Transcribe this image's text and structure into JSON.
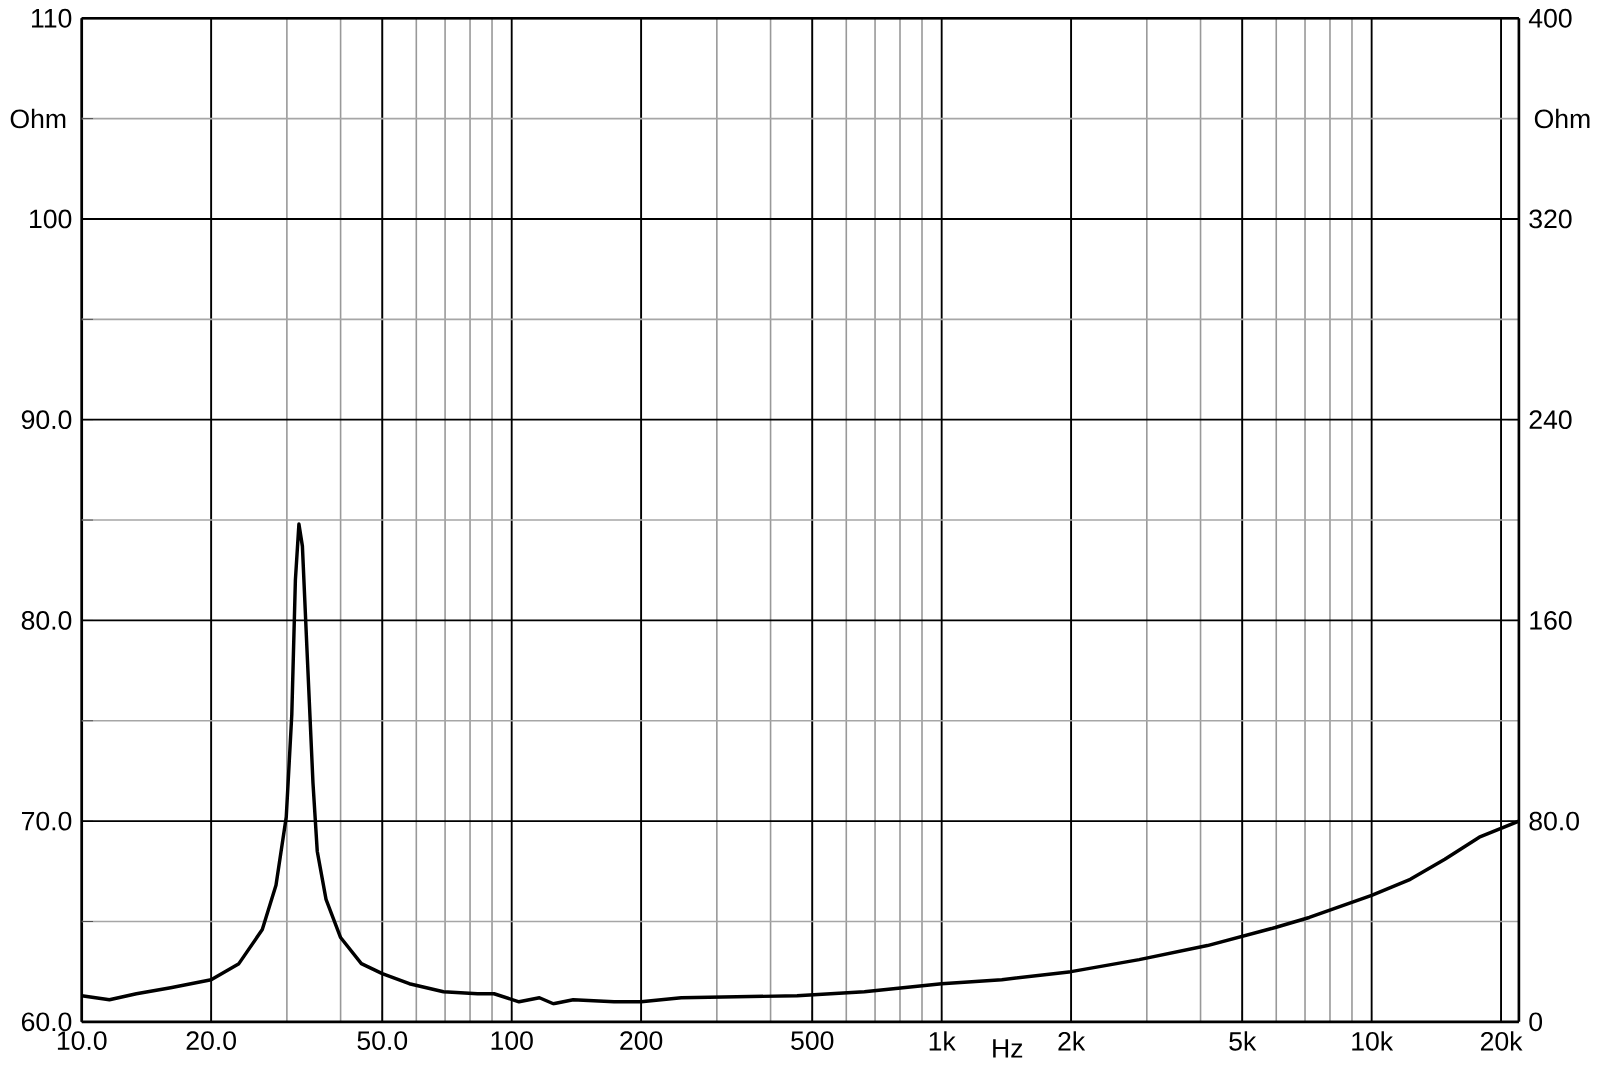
{
  "chart_data": {
    "type": "line",
    "xlabel": "Hz",
    "ylabel": "Ohm",
    "y2label": "Ohm",
    "x": [
      10,
      11.6,
      13.4,
      16.1,
      20,
      23.2,
      26.3,
      28.3,
      29.9,
      30.8,
      31.4,
      32.0,
      32.6,
      33.4,
      34.5,
      35.3,
      37.0,
      40,
      44.7,
      50,
      57.8,
      69.4,
      83.3,
      91,
      104,
      116,
      125,
      139,
      173,
      200,
      248,
      461,
      661,
      1000,
      1380,
      2000,
      2880,
      4150,
      5970,
      7160,
      10000,
      12300,
      14800,
      17800,
      22000
    ],
    "series": [
      {
        "color": "#000000",
        "values": [
          61.3,
          61.1,
          61.4,
          61.7,
          62.1,
          62.9,
          64.6,
          66.8,
          70.2,
          75.3,
          82.0,
          84.8,
          83.7,
          78.6,
          71.9,
          68.5,
          66.1,
          64.2,
          62.9,
          62.4,
          61.9,
          61.5,
          61.4,
          61.4,
          61.0,
          61.2,
          60.9,
          61.1,
          61.0,
          61.0,
          61.2,
          61.3,
          61.5,
          61.9,
          62.1,
          62.5,
          63.1,
          63.8,
          64.7,
          65.2,
          66.3,
          67.1,
          68.1,
          69.2,
          70.0
        ]
      }
    ],
    "log": "x",
    "grid": true,
    "xlim": [
      10,
      22000
    ],
    "xticks": [
      {
        "value": 10,
        "label": "10.0"
      },
      {
        "value": 20,
        "label": "20.0"
      },
      {
        "value": 50,
        "label": "50.0"
      },
      100,
      200,
      500,
      {
        "value": 1000,
        "label": "1k"
      },
      {
        "value": 2000,
        "label": "2k"
      },
      {
        "value": 5000,
        "label": "5k"
      },
      {
        "value": 10000,
        "label": "10k"
      },
      {
        "value": 20000,
        "label": "20k"
      }
    ],
    "ylim": [
      60,
      110
    ],
    "yticks": [
      {
        "value": 60,
        "label": "60.0"
      },
      {
        "value": 65,
        "label": null
      },
      {
        "value": 70,
        "label": "70.0"
      },
      {
        "value": 75,
        "label": null
      },
      {
        "value": 80,
        "label": "80.0"
      },
      {
        "value": 85,
        "label": null
      },
      {
        "value": 90,
        "label": "90.0"
      },
      {
        "value": 95,
        "label": null
      },
      100,
      {
        "value": 105,
        "label": null
      },
      110
    ],
    "y2lim": [
      0,
      400
    ],
    "y2ticks": [
      0,
      {
        "value": 80,
        "label": "80.0"
      },
      160,
      240,
      320,
      400
    ]
  }
}
